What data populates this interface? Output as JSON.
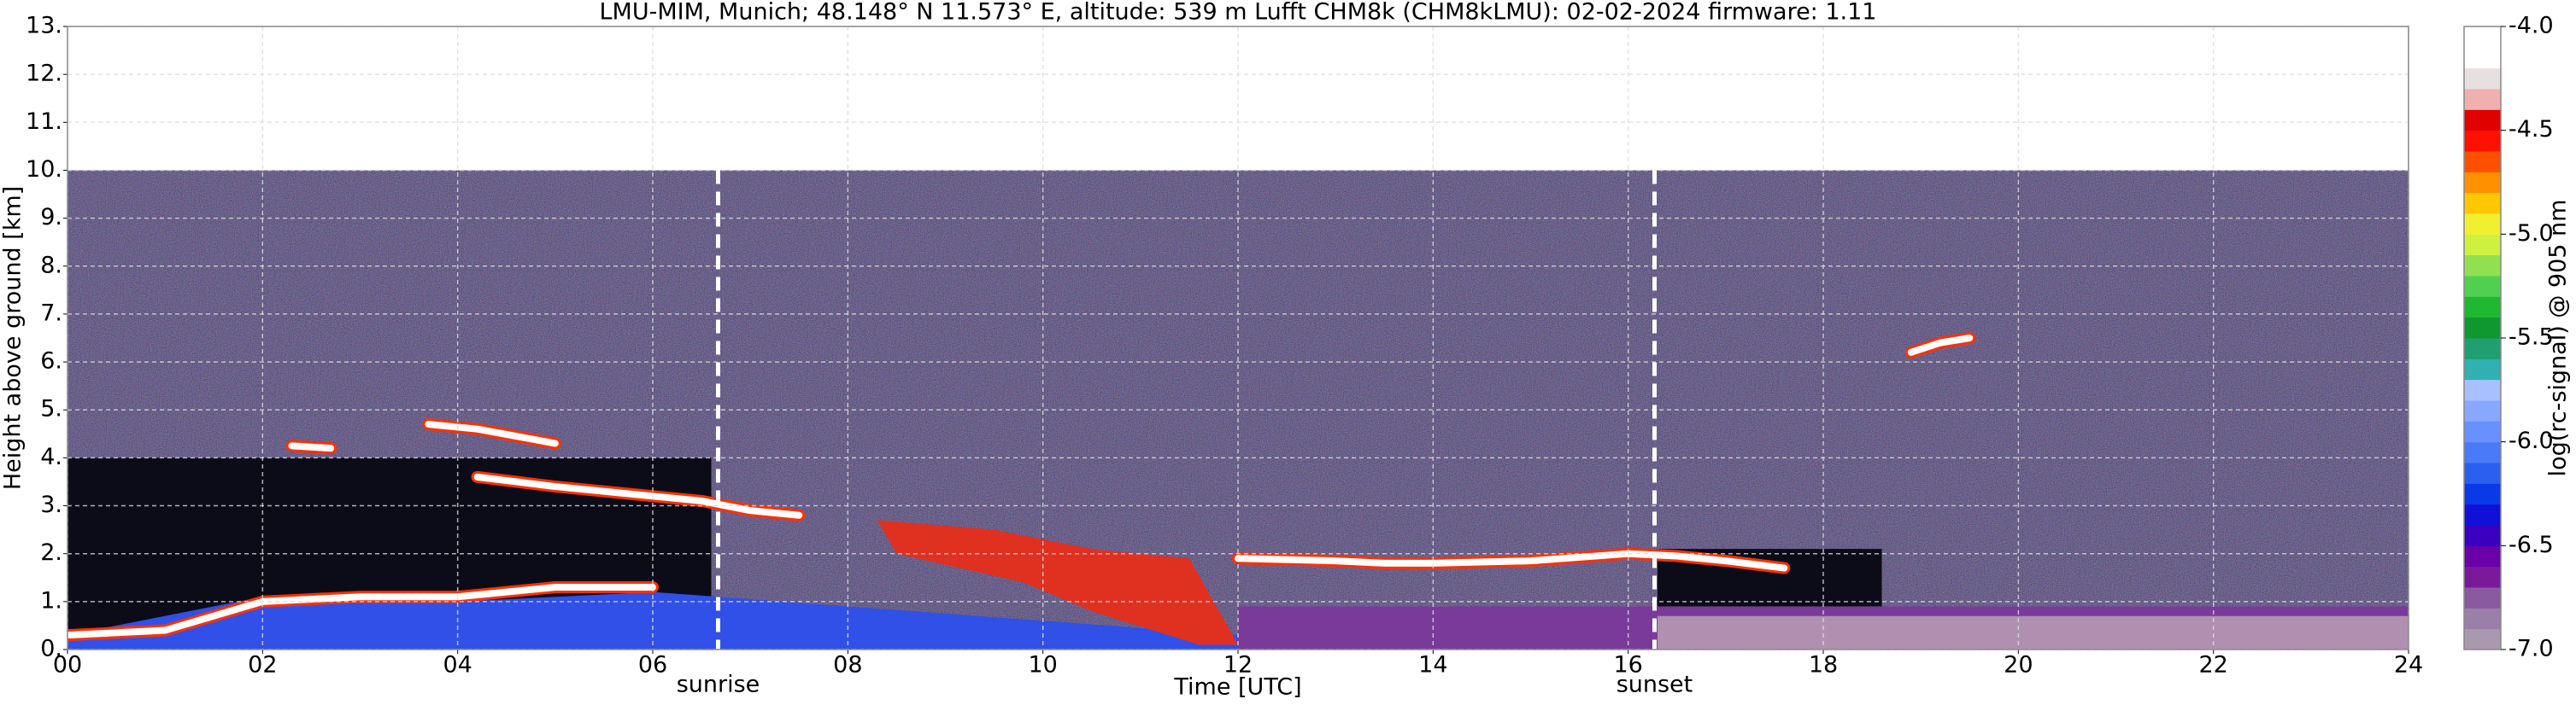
{
  "chart_data": {
    "type": "heatmap",
    "title": "LMU-MIM, Munich; 48.148° N 11.573° E, altitude: 539 m    Lufft CHM8k (CHM8kLMU): 02-02-2024    firmware: 1.11",
    "x_label": "Time [UTC]",
    "y_label": "Height above ground [km]",
    "xlim": [
      0,
      24
    ],
    "xticks": [
      {
        "value": 0,
        "label": "00"
      },
      {
        "value": 2,
        "label": "02"
      },
      {
        "value": 4,
        "label": "04"
      },
      {
        "value": 6,
        "label": "06"
      },
      {
        "value": 8,
        "label": "08"
      },
      10,
      12,
      14,
      16,
      18,
      20,
      22,
      24
    ],
    "ylim": [
      0,
      13
    ],
    "yticks": [
      {
        "value": 0,
        "label": "0."
      },
      {
        "value": 1,
        "label": "1."
      },
      {
        "value": 2,
        "label": "2."
      },
      {
        "value": 3,
        "label": "3."
      },
      {
        "value": 4,
        "label": "4."
      },
      {
        "value": 5,
        "label": "5."
      },
      {
        "value": 6,
        "label": "6."
      },
      {
        "value": 7,
        "label": "7."
      },
      {
        "value": 8,
        "label": "8."
      },
      {
        "value": 9,
        "label": "9."
      },
      {
        "value": 10,
        "label": "10."
      },
      {
        "value": 11,
        "label": "11."
      },
      {
        "value": 12,
        "label": "12."
      },
      {
        "value": 13,
        "label": "13."
      }
    ],
    "grid": true,
    "colorbar": {
      "label": "log(rc-signal) @ 905 nm",
      "lim": [
        -7,
        -4
      ],
      "ticks": [
        {
          "value": -7,
          "label": "-7.0"
        },
        -6.5,
        {
          "value": -6,
          "label": "-6.0"
        },
        -5.5,
        {
          "value": -5,
          "label": "-5.0"
        },
        -4.5,
        {
          "value": -4,
          "label": "-4.0"
        }
      ],
      "colors": [
        "#a899ae",
        "#9a7fa8",
        "#8a5aa0",
        "#7a1a9a",
        "#6a00a8",
        "#3a00c0",
        "#1010d8",
        "#0a3ae8",
        "#2a60f0",
        "#4a7af8",
        "#6890ff",
        "#88a8ff",
        "#a8c0ff",
        "#30b0b0",
        "#20a070",
        "#109830",
        "#20b830",
        "#50d050",
        "#90e050",
        "#d0f040",
        "#f0f030",
        "#ffc800",
        "#ff9000",
        "#ff5000",
        "#ff1000",
        "#e00000",
        "#f0b0b0",
        "#e8e0e0",
        "#ffffff",
        "#ffffff"
      ]
    },
    "regions": [
      {
        "x": [
          0,
          24,
          24,
          0
        ],
        "y": [
          0,
          0,
          10,
          10
        ],
        "color": "#2b2b66"
      },
      {
        "x": [
          0,
          6.6,
          6.6,
          0
        ],
        "y": [
          0,
          0,
          4,
          4
        ],
        "color": "#0c0c18"
      },
      {
        "x": [
          16.3,
          18.6,
          18.6,
          16.3
        ],
        "y": [
          0.9,
          0.9,
          2.1,
          2.1
        ],
        "color": "#0c0c18"
      },
      {
        "x": [
          12,
          24,
          24,
          12
        ],
        "y": [
          0,
          0,
          0.9,
          0.9
        ],
        "color": "#7a3a9a"
      },
      {
        "x": [
          16.3,
          24,
          24,
          16.3
        ],
        "y": [
          0,
          0,
          0.7,
          0.7
        ],
        "color": "#b090b0"
      },
      {
        "x": [
          0,
          2,
          4,
          6,
          8,
          10,
          12,
          12,
          0
        ],
        "y": [
          0.3,
          1.1,
          1.0,
          1.2,
          0.9,
          0.6,
          0.3,
          0,
          0
        ],
        "color": "#3050e8"
      },
      {
        "x": [
          8.3,
          9.5,
          10.5,
          11.5,
          12,
          11.6,
          10.5,
          9.8,
          8.5
        ],
        "y": [
          2.7,
          2.5,
          2.1,
          1.9,
          0.1,
          0.1,
          0.8,
          1.4,
          2.0
        ],
        "color": "#e03020"
      }
    ],
    "series": [
      {
        "color": "#ffffff",
        "x": [
          12,
          13,
          13.5,
          14,
          15,
          16,
          16.5,
          17,
          17.6
        ],
        "values": [
          1.9,
          1.85,
          1.8,
          1.8,
          1.85,
          2.0,
          1.95,
          1.85,
          1.7
        ]
      },
      {
        "color": "#ffffff",
        "x": [
          4.2,
          4.6,
          5,
          5.5,
          6,
          6.5,
          7,
          7.5
        ],
        "values": [
          3.6,
          3.5,
          3.4,
          3.3,
          3.2,
          3.1,
          2.9,
          2.8
        ]
      },
      {
        "color": "#ffffff",
        "x": [
          2.3,
          2.7,
          3.0,
          3.7,
          4.2,
          4.6,
          5.0
        ],
        "values": [
          4.25,
          4.2,
          null,
          4.7,
          4.6,
          4.45,
          4.3
        ]
      },
      {
        "color": "#ffffff",
        "x": [
          0,
          1,
          2,
          3,
          4,
          5,
          6
        ],
        "values": [
          0.3,
          0.4,
          1.0,
          1.1,
          1.1,
          1.3,
          1.3
        ]
      },
      {
        "color": "#ffffff",
        "x": [
          18.9,
          19.2,
          19.5
        ],
        "values": [
          6.2,
          6.4,
          6.5
        ]
      }
    ],
    "edge_color": "#ff3000",
    "annotations": [
      {
        "text": "sunrise",
        "x": 6.67
      },
      {
        "text": "sunset",
        "x": 16.27
      }
    ]
  }
}
